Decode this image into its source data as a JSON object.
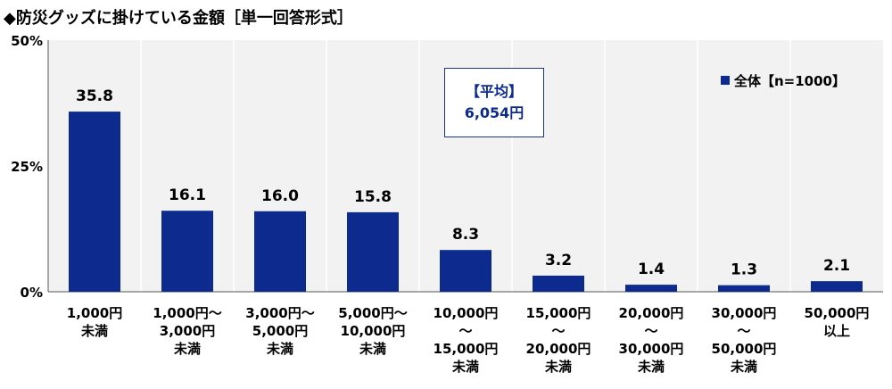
{
  "title": "◆防災グッズに掛けている金額［単一回答形式］",
  "average_box": {
    "label": "【平均】",
    "value": "6,054円"
  },
  "legend": {
    "label": "全体【n=1000】",
    "color": "#0d2b8f"
  },
  "chart_data": {
    "type": "bar",
    "title": "◆防災グッズに掛けている金額［単一回答形式］",
    "categories": [
      [
        "1,000円",
        "未満"
      ],
      [
        "1,000円～",
        "3,000円",
        "未満"
      ],
      [
        "3,000円～",
        "5,000円",
        "未満"
      ],
      [
        "5,000円～",
        "10,000円",
        "未満"
      ],
      [
        "10,000円",
        "～",
        "15,000円",
        "未満"
      ],
      [
        "15,000円",
        "～",
        "20,000円",
        "未満"
      ],
      [
        "20,000円",
        "～",
        "30,000円",
        "未満"
      ],
      [
        "30,000円",
        "～",
        "50,000円",
        "未満"
      ],
      [
        "50,000円",
        "以上"
      ]
    ],
    "series": [
      {
        "name": "全体【n=1000】",
        "values": [
          35.8,
          16.1,
          16.0,
          15.8,
          8.3,
          3.2,
          1.4,
          1.3,
          2.1
        ],
        "color": "#0d2b8f"
      }
    ],
    "value_labels": [
      "35.8",
      "16.1",
      "16.0",
      "15.8",
      "8.3",
      "3.2",
      "1.4",
      "1.3",
      "2.1"
    ],
    "yticks": [
      0,
      25,
      50
    ],
    "ytick_labels": [
      "0%",
      "25%",
      "50%"
    ],
    "ylim": [
      0,
      50
    ],
    "xlabel": "",
    "ylabel": "",
    "grid": false,
    "legend_position": "top-right"
  }
}
